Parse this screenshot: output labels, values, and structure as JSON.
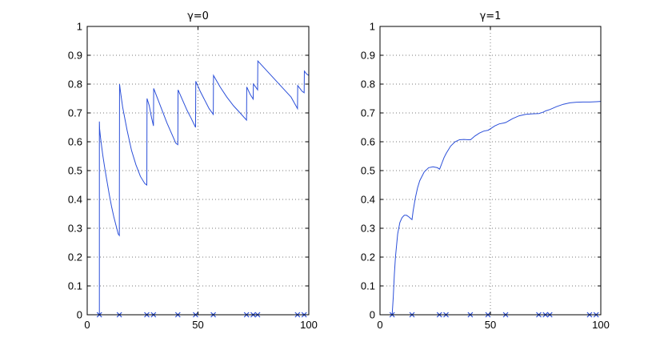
{
  "colors": {
    "series": "#2b4fd9",
    "axis": "#000000",
    "background": "#ffffff"
  },
  "chart_data": [
    {
      "type": "line",
      "title": "γ=0",
      "xlim": [
        0,
        100
      ],
      "ylim": [
        0,
        1
      ],
      "xticks": [
        0,
        50,
        100
      ],
      "yticks": [
        0,
        0.1,
        0.2,
        0.3,
        0.4,
        0.5,
        0.6,
        0.7,
        0.8,
        0.9,
        1
      ],
      "ytick_labels": [
        "0",
        "0.1",
        "0.2",
        "0.3",
        "0.4",
        "0.5",
        "0.6",
        "0.7",
        "0.8",
        "0.9",
        "1"
      ],
      "grid": true,
      "series": [
        {
          "x": [
            5.5,
            5.5,
            5.6,
            6,
            6.5,
            7,
            8,
            9,
            10,
            11,
            12,
            13,
            14,
            14.5,
            14.6,
            15,
            16,
            18,
            20,
            22,
            24,
            26,
            26.9,
            27,
            28,
            29,
            29.9,
            30,
            32,
            34,
            36,
            38,
            40,
            40.9,
            41,
            43,
            45,
            47,
            48.9,
            49,
            51,
            53,
            55,
            56.9,
            57,
            60,
            63,
            66,
            69,
            71.9,
            72,
            73.5,
            74.9,
            75,
            76,
            76.9,
            77,
            80,
            83,
            86,
            89,
            92,
            94.9,
            95,
            96,
            97,
            97.9,
            98,
            99,
            100
          ],
          "y": [
            0,
            0.67,
            0.645,
            0.615,
            0.585,
            0.555,
            0.505,
            0.46,
            0.415,
            0.375,
            0.34,
            0.31,
            0.28,
            0.275,
            0.8,
            0.775,
            0.72,
            0.64,
            0.57,
            0.52,
            0.48,
            0.455,
            0.45,
            0.75,
            0.725,
            0.685,
            0.655,
            0.785,
            0.745,
            0.705,
            0.665,
            0.63,
            0.595,
            0.59,
            0.78,
            0.745,
            0.71,
            0.68,
            0.65,
            0.81,
            0.775,
            0.745,
            0.715,
            0.695,
            0.83,
            0.79,
            0.755,
            0.725,
            0.7,
            0.675,
            0.79,
            0.765,
            0.748,
            0.8,
            0.79,
            0.78,
            0.88,
            0.855,
            0.83,
            0.805,
            0.78,
            0.755,
            0.715,
            0.795,
            0.785,
            0.775,
            0.77,
            0.845,
            0.835,
            0.83
          ]
        }
      ],
      "markers": {
        "shape": "x",
        "y": 0,
        "x": [
          5.5,
          14.5,
          26.9,
          29.9,
          40.9,
          48.9,
          56.9,
          71.9,
          74.9,
          76.9,
          94.9,
          97.9
        ]
      }
    },
    {
      "type": "line",
      "title": "γ=1",
      "xlim": [
        0,
        100
      ],
      "ylim": [
        0,
        1
      ],
      "xticks": [
        0,
        50,
        100
      ],
      "yticks": [
        0,
        0.1,
        0.2,
        0.3,
        0.4,
        0.5,
        0.6,
        0.7,
        0.8,
        0.9,
        1
      ],
      "ytick_labels": [
        "0",
        "0.1",
        "0.2",
        "0.3",
        "0.4",
        "0.5",
        "0.6",
        "0.7",
        "0.8",
        "0.9",
        "1"
      ],
      "grid": true,
      "series": [
        {
          "x": [
            5.5,
            6,
            6.5,
            7,
            8,
            9,
            10,
            11,
            12,
            13,
            14,
            14.5,
            15,
            16,
            17,
            18,
            20,
            22,
            24,
            26,
            27,
            28,
            29,
            30,
            32,
            34,
            36,
            38,
            40,
            41,
            43,
            45,
            47,
            49,
            50,
            52,
            54,
            56,
            57,
            60,
            63,
            66,
            69,
            72,
            74,
            75,
            77,
            80,
            83,
            86,
            89,
            92,
            95,
            98,
            100
          ],
          "y": [
            0,
            0.06,
            0.14,
            0.2,
            0.28,
            0.32,
            0.337,
            0.345,
            0.345,
            0.34,
            0.333,
            0.33,
            0.36,
            0.405,
            0.44,
            0.465,
            0.495,
            0.51,
            0.513,
            0.51,
            0.505,
            0.525,
            0.545,
            0.56,
            0.585,
            0.6,
            0.607,
            0.608,
            0.607,
            0.607,
            0.62,
            0.63,
            0.637,
            0.64,
            0.645,
            0.655,
            0.662,
            0.665,
            0.667,
            0.68,
            0.69,
            0.695,
            0.697,
            0.698,
            0.703,
            0.707,
            0.712,
            0.722,
            0.73,
            0.735,
            0.737,
            0.738,
            0.738,
            0.739,
            0.74
          ]
        }
      ],
      "markers": {
        "shape": "x",
        "y": 0,
        "x": [
          5.5,
          14.5,
          26.9,
          29.9,
          40.9,
          48.9,
          56.9,
          71.9,
          74.9,
          76.9,
          94.9,
          97.9
        ]
      }
    }
  ]
}
